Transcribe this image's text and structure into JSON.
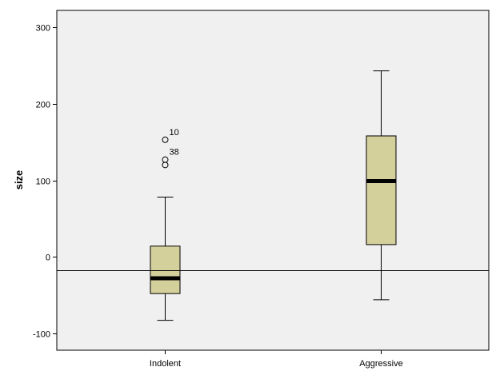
{
  "chart_data": {
    "type": "boxplot",
    "ylabel": "size",
    "xlabel": "",
    "ylim": [
      -122,
      322
    ],
    "yticks": [
      -100,
      0,
      100,
      200,
      300
    ],
    "categories": [
      "Indolent",
      "Aggressive"
    ],
    "boxes": [
      {
        "category": "Indolent",
        "whisker_low": -83,
        "q1": -48,
        "median": -28,
        "q3": 14,
        "whisker_high": 78,
        "outliers": [
          {
            "value": 153,
            "label": "10"
          },
          {
            "value": 127,
            "label": "38"
          },
          {
            "value": 120,
            "label": ""
          }
        ]
      },
      {
        "category": "Aggressive",
        "whisker_low": -56,
        "q1": 16,
        "median": 99,
        "q3": 158,
        "whisker_high": 243,
        "outliers": []
      }
    ],
    "reference_line": -18,
    "grid": false,
    "colors": {
      "plot_background": "#f0f0f0",
      "box_fill": "#d4d09c"
    }
  }
}
